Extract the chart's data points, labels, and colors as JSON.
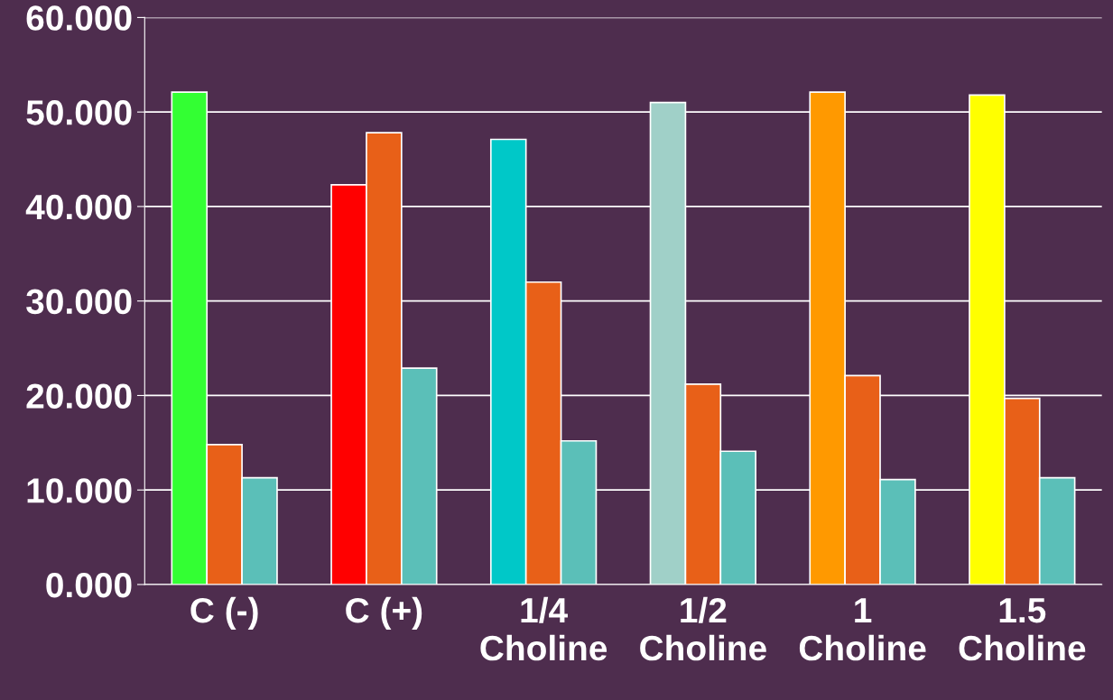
{
  "chart_data": {
    "type": "bar",
    "categories": [
      "C (-)",
      "C (+)",
      "1/4\nCholine",
      "1/2\nCholine",
      "1\nCholine",
      "1.5\nCholine"
    ],
    "series": [
      {
        "colors": [
          "#33ff33",
          "#ff0000",
          "#00c8c8",
          "#a0d0c8",
          "#ff9900",
          "#ffff00"
        ],
        "values": [
          52.1,
          42.3,
          47.1,
          51.0,
          52.1,
          51.8
        ]
      },
      {
        "color": "#e86018",
        "values": [
          14.8,
          47.8,
          32.0,
          21.2,
          22.1,
          19.7
        ]
      },
      {
        "color": "#5bbfb8",
        "values": [
          11.3,
          22.9,
          15.2,
          14.1,
          11.1,
          11.3
        ]
      }
    ],
    "ylim": [
      0,
      60
    ],
    "yticks": [
      {
        "value": 0,
        "label": "0.000"
      },
      {
        "value": 10,
        "label": "10.000"
      },
      {
        "value": 20,
        "label": "20.000"
      },
      {
        "value": 30,
        "label": "30.000"
      },
      {
        "value": 40,
        "label": "40.000"
      },
      {
        "value": 50,
        "label": "50.000"
      },
      {
        "value": 60,
        "label": "60.000"
      }
    ],
    "grid": "y"
  }
}
